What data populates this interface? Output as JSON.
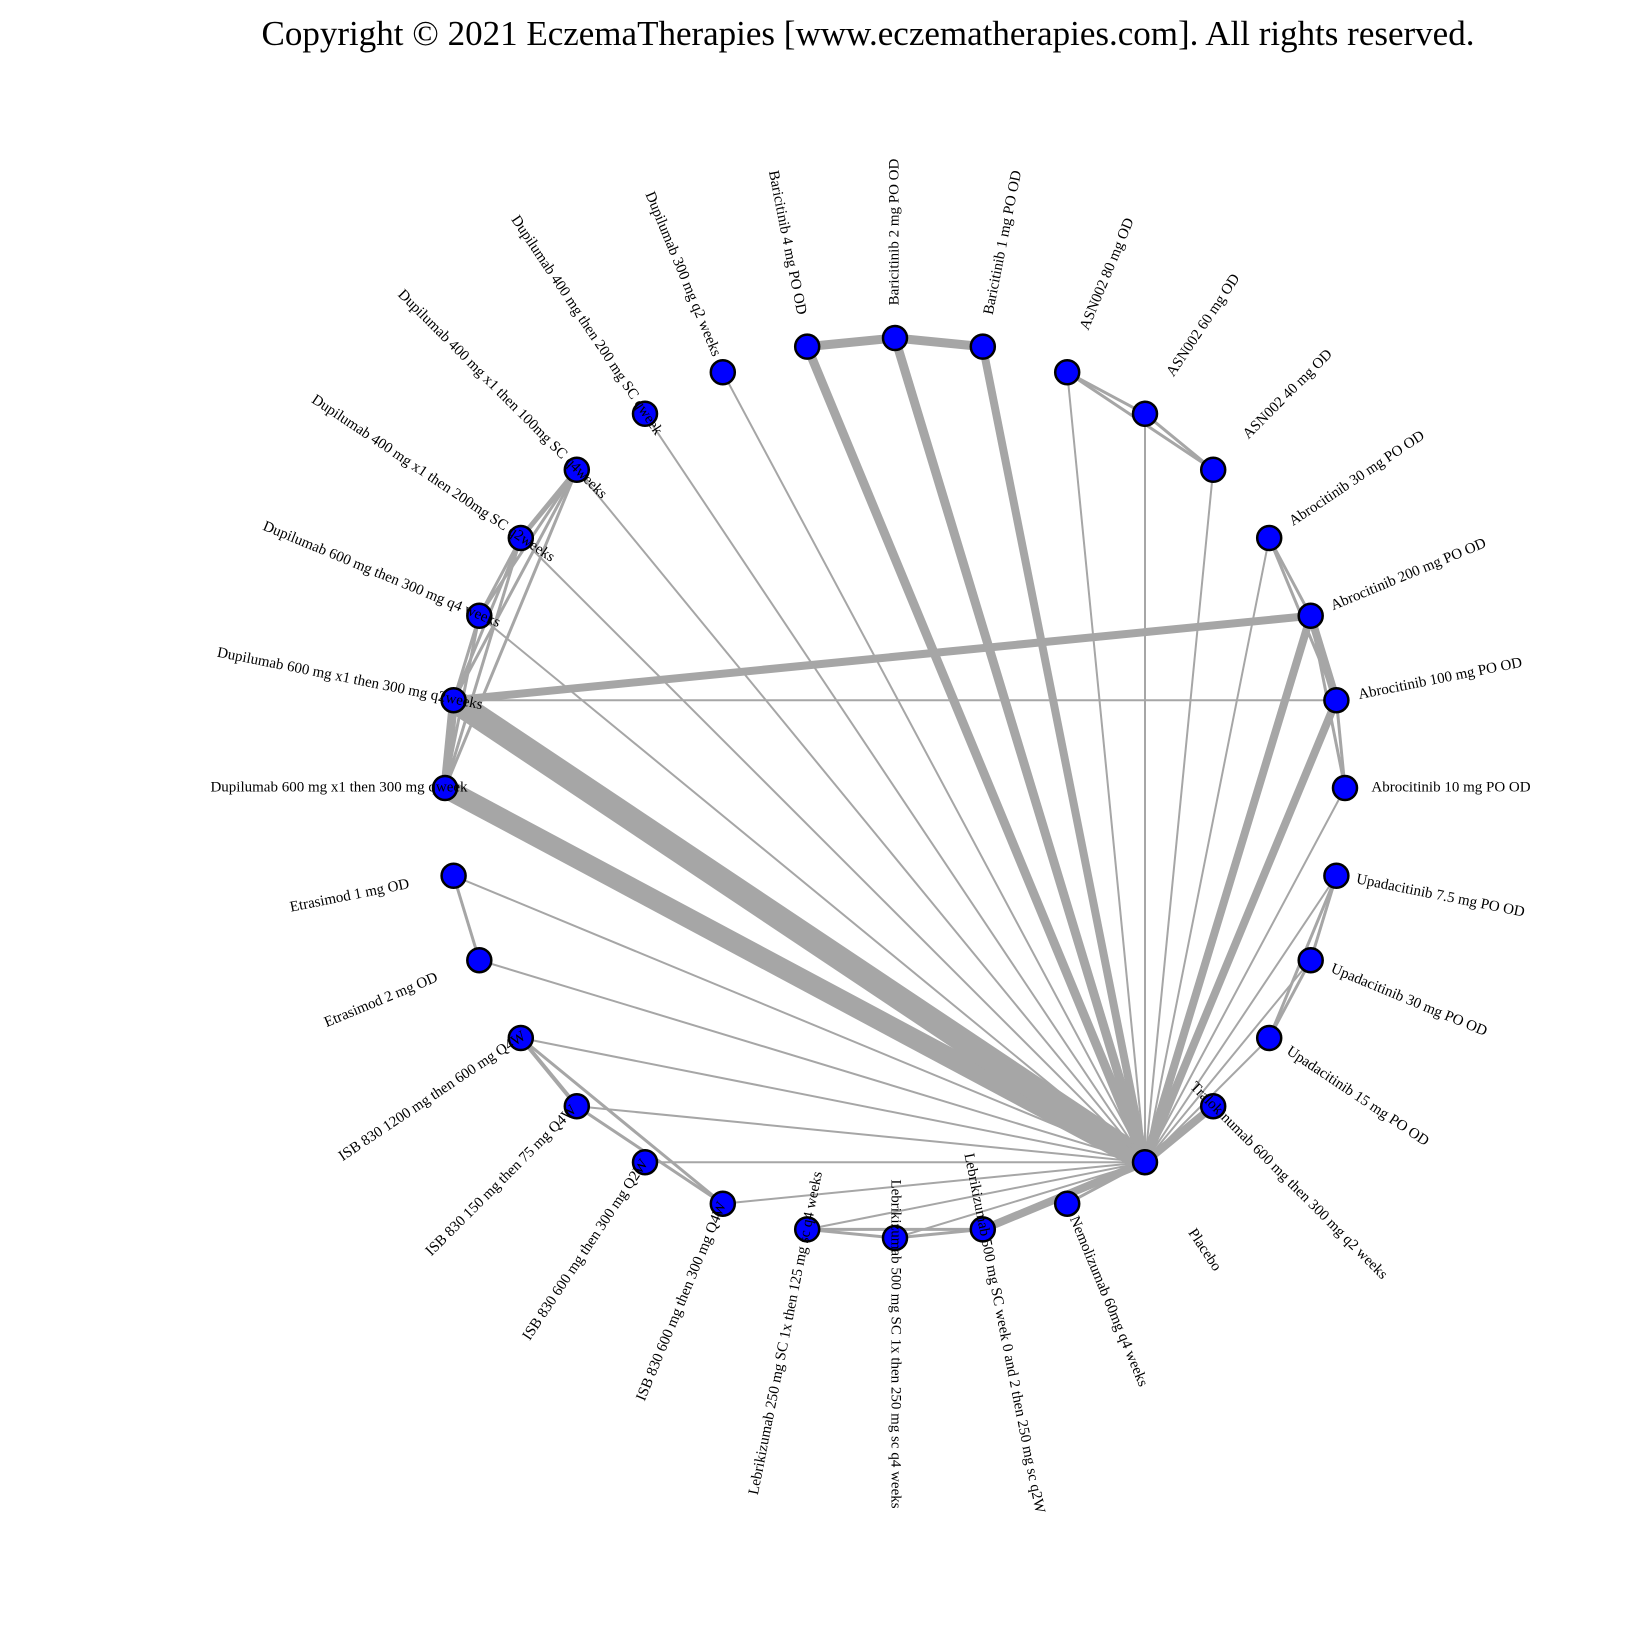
{
  "copyright": "Copyright © 2021 EczemaTherapies [www.eczematherapies.com]. All rights reserved.",
  "colors": {
    "node_fill": "#0000ff",
    "node_stroke": "#000000",
    "edge": "#a6a6a6",
    "background": "#ffffff"
  },
  "treatments": [
    "Baricitinib 2 mg PO OD",
    "Baricitinib 1 mg PO OD",
    "ASN002 80 mg OD",
    "ASN002 60 mg OD",
    "ASN002 40 mg OD",
    "Abrocitinib 30 mg PO OD",
    "Abrocitinib 200 mg PO OD",
    "Abrocitinib 100 mg PO OD",
    "Abrocitinib 10 mg PO OD",
    "Upadacitinib 7.5 mg PO OD",
    "Upadacitinib 30 mg PO OD",
    "Upadacitinib 15 mg PO OD",
    "Tralokinumab 600 mg then 300 mg q2 weeks",
    "Placebo",
    "Nemolizumab 60mg q4 weeks",
    "Lebrikizumab 500 mg SC week 0 and 2 then 250 mg sc q2W",
    "Lebrikizumab 500 mg SC 1x then 250 mg sc q4 weeks",
    "Lebrikizumab 250 mg SC 1x then 125 mg sc q4 weeks",
    "ISB 830 600 mg then 300 mg Q4W",
    "ISB 830 600 mg then 300 mg Q2W",
    "ISB 830 150 mg then 75 mg Q4W",
    "ISB 830 1200 mg then 600 mg Q4W",
    "Etrasimod 2 mg OD",
    "Etrasimod 1 mg OD",
    "Dupilumab 600 mg x1 then 300 mg qweek",
    "Dupilumab 600 mg x1 then 300 mg q2weeks",
    "Dupilumab 600 mg then 300 mg q4 weeks",
    "Dupilumab 400 mg x1 then 200mg SC q2weeks",
    "Dupilumab 400 mg x1 then 100mg SC q4weeks",
    "Dupilumab 400 mg then 200 mg SC qweek",
    "Dupilumab 300 mg q2 weeks",
    "Baricitinib 4 mg PO OD"
  ],
  "edges": [
    {
      "a": 13,
      "b": 0,
      "w": 9
    },
    {
      "a": 13,
      "b": 1,
      "w": 8
    },
    {
      "a": 13,
      "b": 31,
      "w": 9
    },
    {
      "a": 13,
      "b": 2,
      "w": 2
    },
    {
      "a": 13,
      "b": 3,
      "w": 2
    },
    {
      "a": 13,
      "b": 4,
      "w": 2
    },
    {
      "a": 13,
      "b": 5,
      "w": 2
    },
    {
      "a": 13,
      "b": 6,
      "w": 8
    },
    {
      "a": 13,
      "b": 7,
      "w": 8
    },
    {
      "a": 13,
      "b": 8,
      "w": 2
    },
    {
      "a": 13,
      "b": 9,
      "w": 2
    },
    {
      "a": 13,
      "b": 10,
      "w": 2
    },
    {
      "a": 13,
      "b": 11,
      "w": 2
    },
    {
      "a": 13,
      "b": 12,
      "w": 8
    },
    {
      "a": 13,
      "b": 14,
      "w": 3
    },
    {
      "a": 13,
      "b": 15,
      "w": 8
    },
    {
      "a": 13,
      "b": 16,
      "w": 2
    },
    {
      "a": 13,
      "b": 17,
      "w": 2
    },
    {
      "a": 13,
      "b": 18,
      "w": 2
    },
    {
      "a": 13,
      "b": 19,
      "w": 2
    },
    {
      "a": 13,
      "b": 20,
      "w": 2
    },
    {
      "a": 13,
      "b": 21,
      "w": 2
    },
    {
      "a": 13,
      "b": 22,
      "w": 2
    },
    {
      "a": 13,
      "b": 23,
      "w": 2
    },
    {
      "a": 13,
      "b": 24,
      "w": 20
    },
    {
      "a": 13,
      "b": 25,
      "w": 24
    },
    {
      "a": 13,
      "b": 26,
      "w": 2
    },
    {
      "a": 13,
      "b": 27,
      "w": 2
    },
    {
      "a": 13,
      "b": 28,
      "w": 2
    },
    {
      "a": 13,
      "b": 29,
      "w": 2
    },
    {
      "a": 13,
      "b": 30,
      "w": 2
    },
    {
      "a": 31,
      "b": 0,
      "w": 9
    },
    {
      "a": 0,
      "b": 1,
      "w": 9
    },
    {
      "a": 2,
      "b": 3,
      "w": 3
    },
    {
      "a": 3,
      "b": 4,
      "w": 3
    },
    {
      "a": 2,
      "b": 4,
      "w": 3
    },
    {
      "a": 5,
      "b": 6,
      "w": 3
    },
    {
      "a": 5,
      "b": 7,
      "w": 3
    },
    {
      "a": 6,
      "b": 7,
      "w": 8
    },
    {
      "a": 7,
      "b": 8,
      "w": 3
    },
    {
      "a": 6,
      "b": 8,
      "w": 3
    },
    {
      "a": 6,
      "b": 25,
      "w": 8
    },
    {
      "a": 7,
      "b": 25,
      "w": 2
    },
    {
      "a": 9,
      "b": 10,
      "w": 3
    },
    {
      "a": 9,
      "b": 11,
      "w": 3
    },
    {
      "a": 10,
      "b": 11,
      "w": 3
    },
    {
      "a": 24,
      "b": 25,
      "w": 9
    },
    {
      "a": 24,
      "b": 26,
      "w": 3
    },
    {
      "a": 24,
      "b": 27,
      "w": 3
    },
    {
      "a": 24,
      "b": 28,
      "w": 3
    },
    {
      "a": 25,
      "b": 26,
      "w": 3
    },
    {
      "a": 25,
      "b": 27,
      "w": 3
    },
    {
      "a": 25,
      "b": 28,
      "w": 3
    },
    {
      "a": 26,
      "b": 27,
      "w": 3
    },
    {
      "a": 26,
      "b": 28,
      "w": 3
    },
    {
      "a": 27,
      "b": 28,
      "w": 5
    },
    {
      "a": 22,
      "b": 23,
      "w": 3
    },
    {
      "a": 18,
      "b": 20,
      "w": 3
    },
    {
      "a": 18,
      "b": 21,
      "w": 3
    },
    {
      "a": 20,
      "b": 21,
      "w": 4
    },
    {
      "a": 15,
      "b": 16,
      "w": 3
    },
    {
      "a": 15,
      "b": 17,
      "w": 3
    },
    {
      "a": 16,
      "b": 17,
      "w": 3
    }
  ]
}
